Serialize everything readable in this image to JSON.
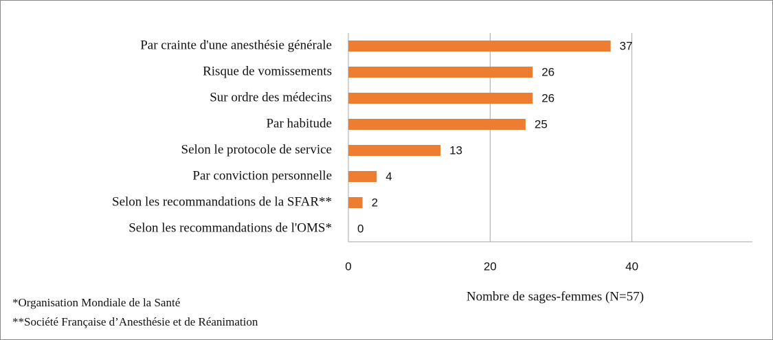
{
  "chart_data": {
    "type": "bar",
    "orientation": "horizontal",
    "x_label": "Nombre de sages-femmes (N=57)",
    "categories": [
      "Par crainte d'une anesthésie générale",
      "Risque de vomissements",
      "Sur ordre des médecins",
      "Par habitude",
      "Selon le protocole de service",
      "Par conviction personnelle",
      "Selon les recommandations de la SFAR**",
      "Selon les recommandations de l'OMS*"
    ],
    "values": [
      37,
      26,
      26,
      25,
      13,
      4,
      2,
      0
    ],
    "color": "#ed7d31",
    "xlim": [
      0,
      57
    ],
    "xticks": [
      0,
      20,
      40
    ],
    "grid": true,
    "footnotes": [
      "*Organisation Mondiale de la Santé",
      "**Société Française d’Anesthésie et de Réanimation"
    ]
  }
}
